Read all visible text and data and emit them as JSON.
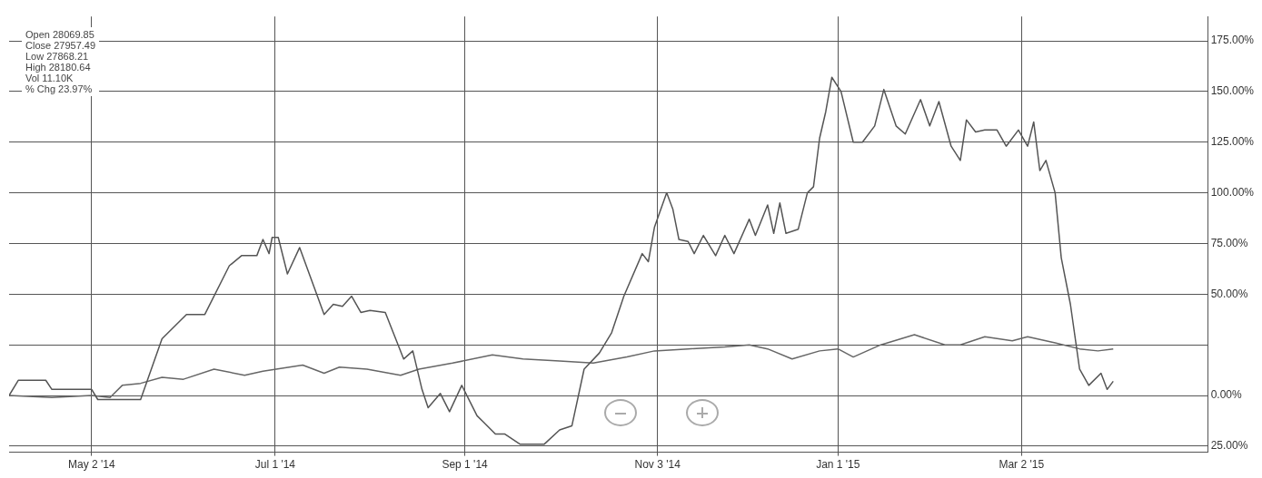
{
  "chart_data": {
    "type": "line",
    "xlim": [
      "2014-04-05",
      "2015-05-02"
    ],
    "xticks": [
      {
        "value": "2014-05-02",
        "label": "May 2 '14"
      },
      {
        "value": "2014-07-01",
        "label": "Jul 1 '14"
      },
      {
        "value": "2014-09-01",
        "label": "Sep 1 '14"
      },
      {
        "value": "2014-11-03",
        "label": "Nov 3 '14"
      },
      {
        "value": "2015-01-01",
        "label": "Jan 1 '15"
      },
      {
        "value": "2015-03-02",
        "label": "Mar 2 '15"
      }
    ],
    "ylim": [
      -28,
      187
    ],
    "yticks": [
      {
        "value": -25,
        "label": "25.00%"
      },
      {
        "value": 0,
        "label": "0.00%"
      },
      {
        "value": 25,
        "label": null
      },
      {
        "value": 50,
        "label": "50.00%"
      },
      {
        "value": 75,
        "label": "75.00%"
      },
      {
        "value": 100,
        "label": "100.00%"
      },
      {
        "value": 125,
        "label": "125.00%"
      },
      {
        "value": 150,
        "label": "150.00%"
      },
      {
        "value": 175,
        "label": "175.00%"
      }
    ],
    "grid": true,
    "legend": false,
    "marker": "none",
    "line_style": "solid",
    "annotations": [
      "Open 28069.85",
      "Close 27957.49",
      "Low 27868.21",
      "High 28180.64",
      "Vol 11.10K",
      "% Chg 23.97%"
    ],
    "series": [
      {
        "color": "#555555",
        "x": [
          "2014-04-05",
          "2014-04-08",
          "2014-04-17",
          "2014-04-19",
          "2014-05-02",
          "2014-05-04",
          "2014-05-18",
          "2014-05-25",
          "2014-06-02",
          "2014-06-08",
          "2014-06-16",
          "2014-06-20",
          "2014-06-25",
          "2014-06-27",
          "2014-06-29",
          "2014-06-30",
          "2014-07-02",
          "2014-07-05",
          "2014-07-09",
          "2014-07-17",
          "2014-07-20",
          "2014-07-23",
          "2014-07-26",
          "2014-07-29",
          "2014-08-01",
          "2014-08-06",
          "2014-08-12",
          "2014-08-15",
          "2014-08-18",
          "2014-08-20",
          "2014-08-24",
          "2014-08-27",
          "2014-08-31",
          "2014-09-05",
          "2014-09-07",
          "2014-09-11",
          "2014-09-14",
          "2014-09-19",
          "2014-09-27",
          "2014-10-02",
          "2014-10-06",
          "2014-10-10",
          "2014-10-15",
          "2014-10-19",
          "2014-10-23",
          "2014-10-29",
          "2014-10-31",
          "2014-11-02",
          "2014-11-06",
          "2014-11-08",
          "2014-11-10",
          "2014-11-13",
          "2014-11-15",
          "2014-11-18",
          "2014-11-22",
          "2014-11-25",
          "2014-11-28",
          "2014-12-03",
          "2014-12-05",
          "2014-12-09",
          "2014-12-11",
          "2014-12-13",
          "2014-12-15",
          "2014-12-19",
          "2014-12-22",
          "2014-12-24",
          "2014-12-26",
          "2014-12-28",
          "2014-12-30",
          "2015-01-02",
          "2015-01-06",
          "2015-01-09",
          "2015-01-13",
          "2015-01-16",
          "2015-01-20",
          "2015-01-23",
          "2015-01-28",
          "2015-01-31",
          "2015-02-03",
          "2015-02-07",
          "2015-02-10",
          "2015-02-12",
          "2015-02-15",
          "2015-02-18",
          "2015-02-22",
          "2015-02-25",
          "2015-03-01",
          "2015-03-04",
          "2015-03-06",
          "2015-03-08",
          "2015-03-10",
          "2015-03-13",
          "2015-03-15",
          "2015-03-18",
          "2015-03-21",
          "2015-03-24",
          "2015-03-28",
          "2015-03-30",
          "2015-04-01"
        ],
        "values": [
          0,
          7.5,
          7.5,
          3,
          3,
          -2,
          -2,
          28,
          40,
          40,
          64,
          69,
          69,
          77,
          70,
          78,
          78,
          60,
          73,
          40,
          45,
          44,
          49,
          41,
          42,
          41,
          18,
          22,
          3,
          -6,
          1,
          -8,
          5,
          -10,
          -13,
          -19,
          -19,
          -24,
          -24,
          -17,
          -15,
          13,
          21,
          31,
          49,
          70,
          66,
          83,
          100,
          92,
          77,
          76,
          70,
          79,
          69,
          79,
          70,
          87,
          79,
          94,
          80,
          95,
          80,
          82,
          100,
          103,
          127,
          140,
          157,
          150,
          125,
          125,
          133,
          151,
          133,
          129,
          146,
          133,
          145,
          123,
          116,
          136,
          130,
          131,
          131,
          123,
          131,
          123,
          135,
          111,
          116,
          100,
          68,
          45,
          13,
          5,
          11,
          3,
          7
        ]
      },
      {
        "color": "#666666",
        "x": [
          "2014-04-05",
          "2014-04-19",
          "2014-05-02",
          "2014-05-08",
          "2014-05-12",
          "2014-05-18",
          "2014-05-25",
          "2014-06-01",
          "2014-06-11",
          "2014-06-21",
          "2014-06-27",
          "2014-07-10",
          "2014-07-17",
          "2014-07-22",
          "2014-07-31",
          "2014-08-11",
          "2014-08-17",
          "2014-08-28",
          "2014-09-10",
          "2014-09-20",
          "2014-10-02",
          "2014-10-13",
          "2014-10-24",
          "2014-11-02",
          "2014-11-13",
          "2014-11-25",
          "2014-12-03",
          "2014-12-09",
          "2014-12-17",
          "2014-12-26",
          "2015-01-01",
          "2015-01-06",
          "2015-01-15",
          "2015-01-26",
          "2015-02-05",
          "2015-02-10",
          "2015-02-18",
          "2015-02-27",
          "2015-03-04",
          "2015-03-13",
          "2015-03-21",
          "2015-03-27",
          "2015-04-01"
        ],
        "values": [
          0,
          -1,
          0,
          -1,
          5,
          6,
          9,
          8,
          13,
          10,
          12,
          15,
          11,
          14,
          13,
          10,
          13,
          16,
          20,
          18,
          17,
          16,
          19,
          22,
          23,
          24,
          25,
          23,
          18,
          22,
          23,
          19,
          25,
          30,
          25,
          25,
          29,
          27,
          29,
          26,
          23,
          22,
          23
        ]
      }
    ]
  }
}
